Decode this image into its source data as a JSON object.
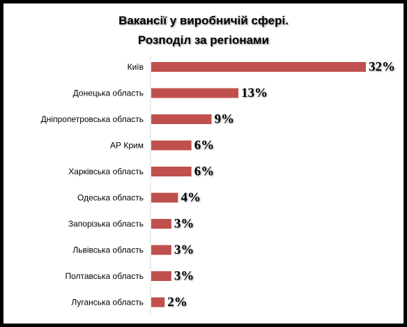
{
  "chart_data": {
    "type": "bar",
    "orientation": "horizontal",
    "title": "Вакансії у виробничій сфері.",
    "subtitle": "Розподіл за регіонами",
    "categories": [
      "Київ",
      "Донецька область",
      "Дніпропетровська область",
      "АР Крим",
      "Харківська область",
      "Одеська область",
      "Запорізька область",
      "Львівська область",
      "Полтавська область",
      "Луганська область"
    ],
    "values": [
      32,
      13,
      9,
      6,
      6,
      4,
      3,
      3,
      3,
      2
    ],
    "data_labels": [
      "32%",
      "13%",
      "9%",
      "6%",
      "6%",
      "4%",
      "3%",
      "3%",
      "3%",
      "2%"
    ],
    "unit": "%",
    "bar_color": "#c0504d",
    "xlim": [
      0,
      32
    ],
    "grid": false,
    "legend": "none"
  }
}
